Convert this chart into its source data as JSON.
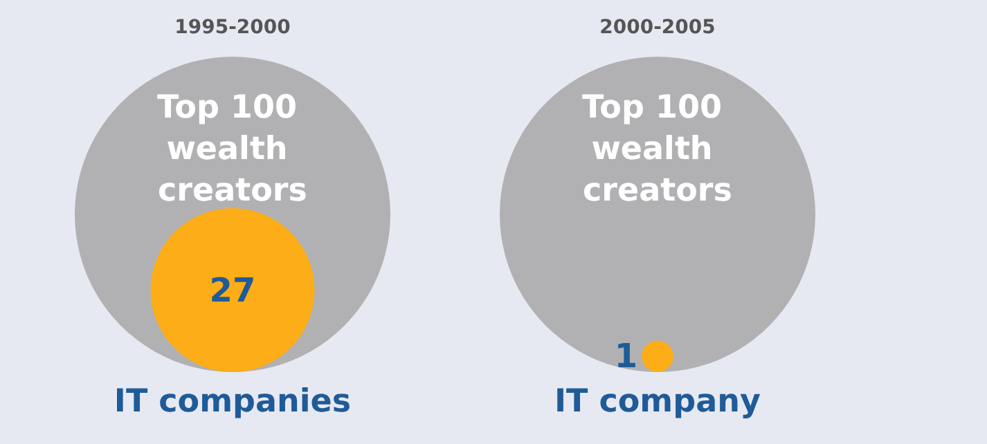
{
  "chart_data": [
    {
      "type": "other",
      "title": "1995-2000",
      "categories": [
        "wealth creators",
        "IT companies"
      ],
      "values": [
        100,
        27
      ],
      "value_labels": [
        "Top 100",
        "27"
      ],
      "colors": [
        "#b1b1b3",
        "#fcad17"
      ]
    },
    {
      "type": "other",
      "title": "2000-2005",
      "categories": [
        "wealth creators",
        "IT company"
      ],
      "values": [
        100,
        1
      ],
      "value_labels": [
        "Top 100",
        "1"
      ],
      "colors": [
        "#b1b1b3",
        "#fcad17"
      ]
    }
  ]
}
